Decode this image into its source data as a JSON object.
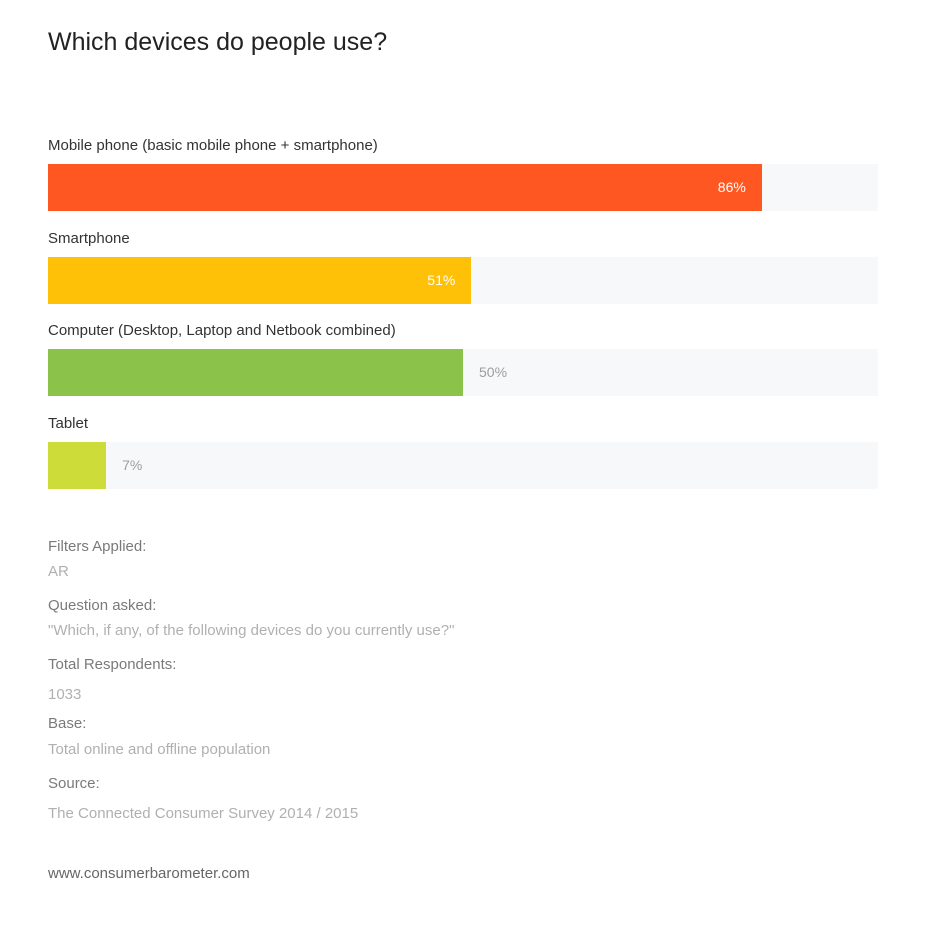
{
  "title": "Which devices do people use?",
  "chart_data": {
    "type": "bar",
    "orientation": "horizontal",
    "title": "Which devices do people use?",
    "categories": [
      "Mobile phone (basic mobile phone + smartphone)",
      "Smartphone",
      "Computer (Desktop, Laptop and Netbook combined)",
      "Tablet"
    ],
    "values": [
      86,
      51,
      50,
      7
    ],
    "value_labels": [
      "86%",
      "51%",
      "50%",
      "7%"
    ],
    "colors": [
      "#ff5722",
      "#ffc107",
      "#8bc34a",
      "#cddc39"
    ],
    "track_color": "#f7f8fa",
    "xlim": [
      0,
      100
    ],
    "unit": "%",
    "grid": false,
    "legend": "none"
  },
  "meta": [
    {
      "label": "Filters Applied:",
      "value": "AR"
    },
    {
      "label": "Question asked:",
      "value": "\"Which, if any, of the following devices do you currently use?\""
    },
    {
      "label": "Total Respondents:",
      "value": "1033"
    },
    {
      "label": "Base:",
      "value": "Total online and offline population"
    },
    {
      "label": "Source:",
      "value": "The Connected Consumer Survey 2014 / 2015"
    }
  ],
  "footer": "www.consumerbarometer.com"
}
